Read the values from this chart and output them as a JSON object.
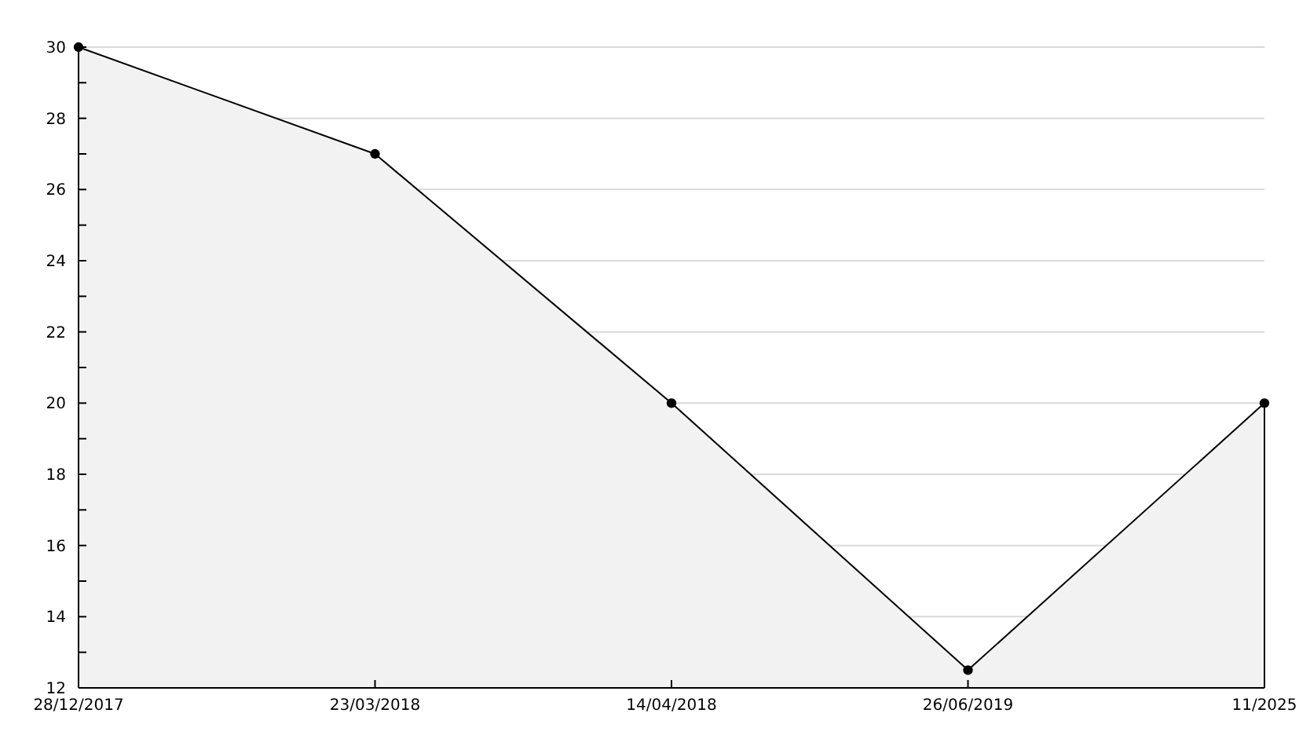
{
  "chart_data": {
    "type": "area",
    "categories": [
      "28/12/2017",
      "23/03/2018",
      "14/04/2018",
      "26/06/2019",
      "11/2025"
    ],
    "series": [
      {
        "color": "#000000",
        "values": [
          30,
          27,
          20,
          12.5,
          20
        ]
      }
    ],
    "ylim": [
      12,
      30
    ],
    "yticks": [
      12,
      {
        "value": 13,
        "label": null
      },
      14,
      {
        "value": 15,
        "label": null
      },
      16,
      {
        "value": 17,
        "label": null
      },
      18,
      {
        "value": 19,
        "label": null
      },
      20,
      {
        "value": 21,
        "label": null
      },
      22,
      {
        "value": 23,
        "label": null
      },
      24,
      {
        "value": 25,
        "label": null
      },
      26,
      {
        "value": 27,
        "label": null
      },
      28,
      {
        "value": 29,
        "label": null
      },
      30
    ],
    "grid": "y",
    "marker": "circle",
    "line_style": "solid"
  }
}
